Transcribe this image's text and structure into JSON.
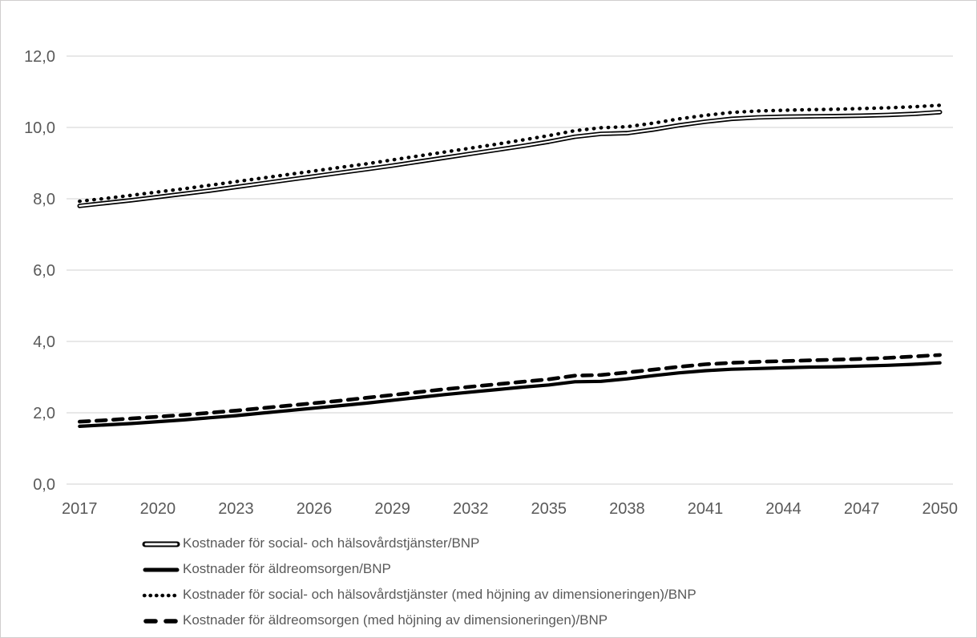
{
  "chart_data": {
    "type": "line",
    "title": "",
    "xlabel": "",
    "ylabel": "",
    "ylim": [
      0,
      12
    ],
    "grid": "horizontal",
    "legend_position": "bottom-left",
    "colors": {
      "line": "#000000",
      "axis_text": "#595959",
      "gridline": "#d9d9d9",
      "background": "#ffffff",
      "border": "#d0cece"
    },
    "y_ticks": [
      {
        "value": 0,
        "label": "0,0"
      },
      {
        "value": 2,
        "label": "2,0"
      },
      {
        "value": 4,
        "label": "4,0"
      },
      {
        "value": 6,
        "label": "6,0"
      },
      {
        "value": 8,
        "label": "8,0"
      },
      {
        "value": 10,
        "label": "10,0"
      },
      {
        "value": 12,
        "label": "12,0"
      }
    ],
    "x": [
      2017,
      2018,
      2019,
      2020,
      2021,
      2022,
      2023,
      2024,
      2025,
      2026,
      2027,
      2028,
      2029,
      2030,
      2031,
      2032,
      2033,
      2034,
      2035,
      2036,
      2037,
      2038,
      2039,
      2040,
      2041,
      2042,
      2043,
      2044,
      2045,
      2046,
      2047,
      2048,
      2049,
      2050
    ],
    "x_ticks": [
      2017,
      2020,
      2023,
      2026,
      2029,
      2032,
      2035,
      2038,
      2041,
      2044,
      2047,
      2050
    ],
    "series": [
      {
        "name": "Kostnader för social- och hälsovårdstjänster/BNP",
        "style": "double",
        "values": [
          7.8,
          7.88,
          7.96,
          8.05,
          8.14,
          8.23,
          8.33,
          8.43,
          8.53,
          8.63,
          8.73,
          8.83,
          8.93,
          9.04,
          9.15,
          9.26,
          9.37,
          9.48,
          9.6,
          9.74,
          9.82,
          9.84,
          9.94,
          10.06,
          10.16,
          10.24,
          10.28,
          10.3,
          10.31,
          10.32,
          10.33,
          10.35,
          10.38,
          10.43
        ]
      },
      {
        "name": "Kostnader för äldreomsorgen/BNP",
        "style": "solid",
        "values": [
          1.62,
          1.66,
          1.7,
          1.75,
          1.8,
          1.86,
          1.92,
          1.99,
          2.06,
          2.13,
          2.2,
          2.27,
          2.35,
          2.43,
          2.51,
          2.58,
          2.65,
          2.72,
          2.78,
          2.87,
          2.88,
          2.95,
          3.04,
          3.12,
          3.18,
          3.22,
          3.24,
          3.26,
          3.28,
          3.29,
          3.31,
          3.33,
          3.36,
          3.4
        ]
      },
      {
        "name": "Kostnader för social- och hälsovårdstjänster (med höjning av dimensioneringen)/BNP",
        "style": "dotted",
        "values": [
          7.93,
          8.01,
          8.1,
          8.19,
          8.28,
          8.38,
          8.48,
          8.58,
          8.68,
          8.78,
          8.88,
          8.98,
          9.09,
          9.2,
          9.31,
          9.42,
          9.53,
          9.65,
          9.77,
          9.91,
          9.99,
          10.02,
          10.12,
          10.24,
          10.34,
          10.42,
          10.46,
          10.48,
          10.5,
          10.51,
          10.53,
          10.55,
          10.58,
          10.62
        ]
      },
      {
        "name": "Kostnader för äldreomsorgen (med höjning av dimensioneringen)/BNP",
        "style": "dashed",
        "values": [
          1.75,
          1.79,
          1.84,
          1.89,
          1.94,
          2.0,
          2.06,
          2.13,
          2.2,
          2.27,
          2.34,
          2.42,
          2.5,
          2.58,
          2.66,
          2.73,
          2.8,
          2.87,
          2.94,
          3.04,
          3.06,
          3.13,
          3.21,
          3.29,
          3.36,
          3.4,
          3.43,
          3.45,
          3.47,
          3.49,
          3.51,
          3.54,
          3.58,
          3.62
        ]
      }
    ]
  }
}
